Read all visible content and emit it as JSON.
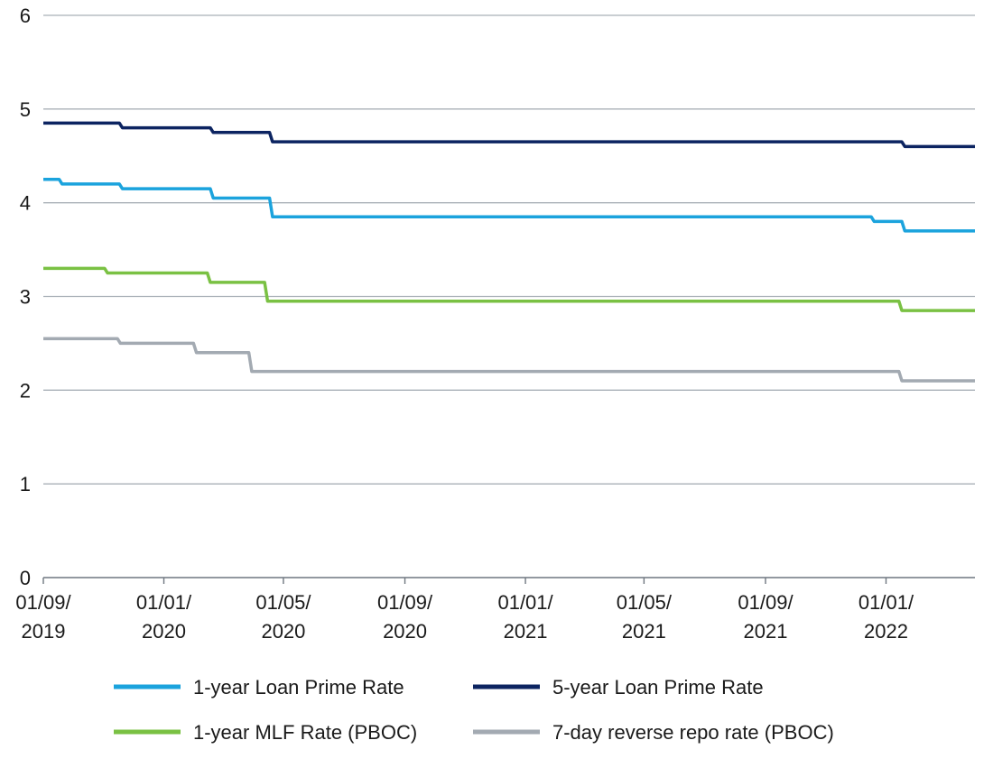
{
  "chart_data": {
    "type": "line",
    "ylim": [
      0,
      6
    ],
    "yticks": [
      "0",
      "1",
      "2",
      "3",
      "4",
      "5",
      "6"
    ],
    "xlim": [
      "2019-09-01",
      "2022-04-01"
    ],
    "xticks": [
      {
        "date": "2019-09-01",
        "line1": "01/09/",
        "line2": "2019"
      },
      {
        "date": "2020-01-01",
        "line1": "01/01/",
        "line2": "2020"
      },
      {
        "date": "2020-05-01",
        "line1": "01/05/",
        "line2": "2020"
      },
      {
        "date": "2020-09-01",
        "line1": "01/09/",
        "line2": "2020"
      },
      {
        "date": "2021-01-01",
        "line1": "01/01/",
        "line2": "2021"
      },
      {
        "date": "2021-05-01",
        "line1": "01/05/",
        "line2": "2021"
      },
      {
        "date": "2021-09-01",
        "line1": "01/09/",
        "line2": "2021"
      },
      {
        "date": "2022-01-01",
        "line1": "01/01/",
        "line2": "2022"
      }
    ],
    "grid": true,
    "legend_position": "bottom",
    "series": [
      {
        "name": "1-year Loan Prime Rate",
        "color": "#1ba3dd",
        "points": [
          {
            "x": "2019-09-01",
            "y": 4.25
          },
          {
            "x": "2019-09-20",
            "y": 4.2
          },
          {
            "x": "2019-11-20",
            "y": 4.15
          },
          {
            "x": "2020-02-20",
            "y": 4.05
          },
          {
            "x": "2020-04-20",
            "y": 3.85
          },
          {
            "x": "2021-12-20",
            "y": 3.8
          },
          {
            "x": "2022-01-20",
            "y": 3.7
          },
          {
            "x": "2022-04-01",
            "y": 3.7
          }
        ]
      },
      {
        "name": "5-year Loan Prime Rate",
        "color": "#0c2461",
        "points": [
          {
            "x": "2019-09-01",
            "y": 4.85
          },
          {
            "x": "2019-11-20",
            "y": 4.8
          },
          {
            "x": "2020-02-20",
            "y": 4.75
          },
          {
            "x": "2020-04-20",
            "y": 4.65
          },
          {
            "x": "2022-01-20",
            "y": 4.6
          },
          {
            "x": "2022-04-01",
            "y": 4.6
          }
        ]
      },
      {
        "name": "1-year MLF Rate (PBOC)",
        "color": "#7ac143",
        "points": [
          {
            "x": "2019-09-01",
            "y": 3.3
          },
          {
            "x": "2019-11-05",
            "y": 3.25
          },
          {
            "x": "2020-02-17",
            "y": 3.15
          },
          {
            "x": "2020-04-15",
            "y": 2.95
          },
          {
            "x": "2022-01-17",
            "y": 2.85
          },
          {
            "x": "2022-04-01",
            "y": 2.85
          }
        ]
      },
      {
        "name": "7-day reverse repo rate (PBOC)",
        "color": "#a3aab2",
        "points": [
          {
            "x": "2019-09-01",
            "y": 2.55
          },
          {
            "x": "2019-11-18",
            "y": 2.5
          },
          {
            "x": "2020-02-03",
            "y": 2.4
          },
          {
            "x": "2020-03-30",
            "y": 2.2
          },
          {
            "x": "2022-01-17",
            "y": 2.1
          },
          {
            "x": "2022-04-01",
            "y": 2.1
          }
        ]
      }
    ]
  }
}
